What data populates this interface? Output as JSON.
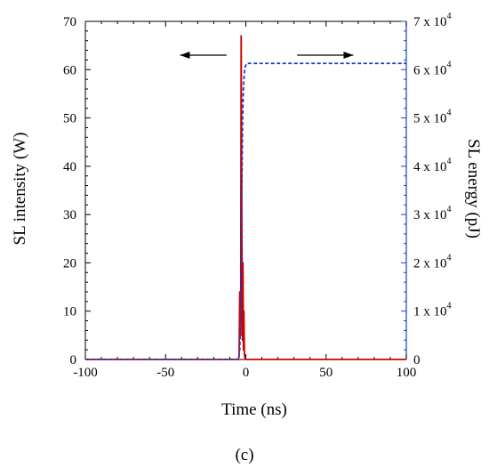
{
  "chart_data": {
    "type": "line",
    "panel_label": "(c)",
    "xlabel": "Time (ns)",
    "ylabel_left": "SL intensity (W)",
    "ylabel_right": "SL energy (pJ)",
    "xlim": [
      -100,
      100
    ],
    "ylim_left": [
      0,
      70
    ],
    "ylim_right": [
      0,
      70000
    ],
    "x_ticks": [
      "-100",
      "-50",
      "0",
      "50",
      "100"
    ],
    "y_ticks_left": [
      "0",
      "10",
      "20",
      "30",
      "40",
      "50",
      "60",
      "70"
    ],
    "y_ticks_right_exponent": "4",
    "y_ticks_right": [
      {
        "value": 0,
        "label": "0"
      },
      {
        "value": 10000,
        "mantissa": "1 x 10",
        "exponent": "4"
      },
      {
        "value": 20000,
        "mantissa": "2 x 10",
        "exponent": "4"
      },
      {
        "value": 30000,
        "mantissa": "3 x 10",
        "exponent": "4"
      },
      {
        "value": 40000,
        "mantissa": "4 x 10",
        "exponent": "4"
      },
      {
        "value": 50000,
        "mantissa": "5 x 10",
        "exponent": "4"
      },
      {
        "value": 60000,
        "mantissa": "6 x 10",
        "exponent": "4"
      },
      {
        "value": 70000,
        "mantissa": "7 x 10",
        "exponent": "4"
      }
    ],
    "series": [
      {
        "axis": "left",
        "style": "solid",
        "color": "#cc0000",
        "x": [
          -100,
          -5,
          -4.2,
          -3.8,
          -3.2,
          -2.9,
          -2.5,
          -2.1,
          -1.8,
          -1.5,
          -1.2,
          -0.9,
          -0.5,
          0,
          100
        ],
        "y": [
          0,
          0,
          0.5,
          14,
          5,
          67,
          28,
          4,
          20,
          2,
          10,
          1,
          0.3,
          0,
          0
        ]
      },
      {
        "axis": "right",
        "style": "dashed",
        "color": "#1a3fc4",
        "x": [
          -100,
          -4.5,
          -3.8,
          -3.0,
          -2.5,
          -2.0,
          -1.5,
          -1.0,
          -0.5,
          0.5,
          100
        ],
        "y": [
          0,
          0,
          2000,
          12000,
          35000,
          50000,
          56000,
          59000,
          60500,
          61300,
          61300
        ]
      }
    ],
    "annotations": [
      {
        "type": "arrow",
        "direction": "left",
        "points_to_axis": "left"
      },
      {
        "type": "arrow",
        "direction": "right",
        "points_to_axis": "right"
      }
    ],
    "colors": {
      "left_axis": "#000000",
      "right_axis": "#1a3fc4"
    }
  }
}
